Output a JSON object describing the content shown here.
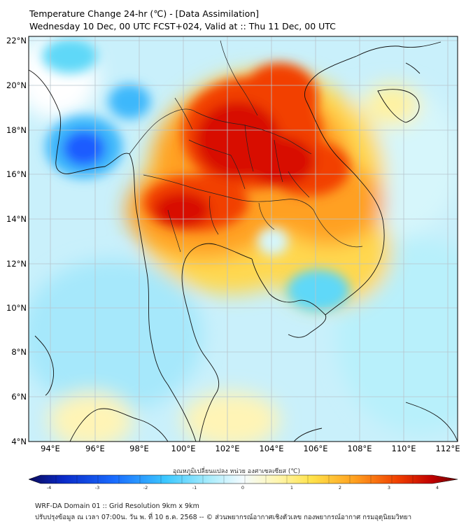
{
  "header": {
    "title": "Temperature Change 24-hr (℃) - [Data Assimilation]",
    "subtitle": "Wednesday 10 Dec, 00 UTC FCST+024, Valid at :: Thu 11 Dec, 00 UTC"
  },
  "map": {
    "lat_labels": [
      "22°N",
      "20°N",
      "18°N",
      "16°N",
      "14°N",
      "12°N",
      "10°N",
      "8°N",
      "6°N",
      "4°N"
    ],
    "lon_labels": [
      "94°E",
      "96°E",
      "98°E",
      "100°E",
      "102°E",
      "104°E",
      "106°E",
      "108°E",
      "110°E",
      "112°E"
    ],
    "lat_range": [
      4,
      22
    ],
    "lon_range": [
      93,
      112.5
    ]
  },
  "colorbar": {
    "label": "อุณหภูมิเปลี่ยนแปลง หน่วย องศาเซลเซียส (℃)",
    "ticks": [
      "-4",
      "-3",
      "-2",
      "-1",
      "0",
      "1",
      "2",
      "3",
      "4"
    ],
    "range": [
      -4,
      4
    ],
    "colors": {
      "cold_extreme": "#0a0a5a",
      "cold": "#1a5cff",
      "cool": "#5ed8f8",
      "neutral": "#f4fbff",
      "warm": "#fff28a",
      "hot": "#ff9a10",
      "hottest": "#e01000",
      "hot_extreme": "#6a0000"
    }
  },
  "footer": {
    "line1": "WRF-DA Domain 01 :: Grid Resolution 9km x 9km",
    "line2": "ปรับปรุงข้อมูล ณ เวลา 07:00น. วัน พ. ที่ 10 ธ.ค. 2568 -- © ส่วนพยากรณ์อากาศเชิงตัวเลข กองพยากรณ์อากาศ กรมอุตุนิยมวิทยา"
  }
}
